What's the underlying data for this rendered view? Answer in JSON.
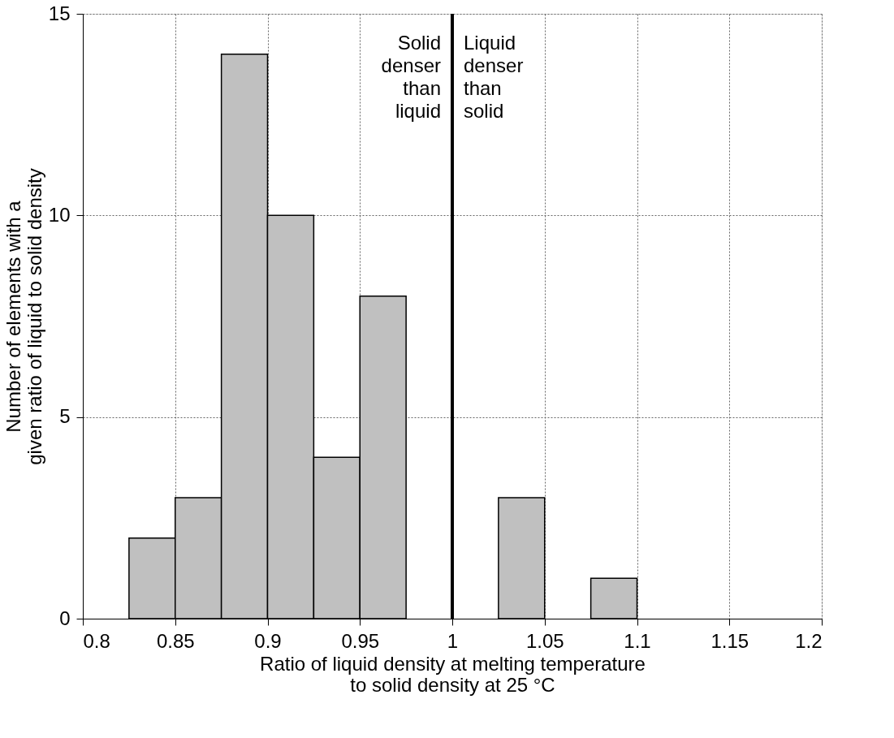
{
  "chart_data": {
    "type": "histogram",
    "xlabel": "Ratio of liquid density at melting temperature\nto solid density at 25 °C",
    "ylabel": "Number of elements with a\ngiven ratio of liquid to solid density",
    "bins": [
      0.825,
      0.85,
      0.875,
      0.9,
      0.925,
      0.95,
      0.975,
      1.0,
      1.025,
      1.05,
      1.075,
      1.1
    ],
    "values": [
      2,
      3,
      14,
      10,
      4,
      8,
      0,
      0,
      3,
      0,
      1
    ],
    "color": "#c0c0c0",
    "xlim": [
      0.8,
      1.2
    ],
    "xticks": [
      0.8,
      0.85,
      0.9,
      0.95,
      1,
      1.05,
      1.1,
      1.15,
      1.2
    ],
    "ylim": [
      0,
      15
    ],
    "yticks": [
      0,
      5,
      10,
      15
    ],
    "grid": true,
    "ref_lines": [
      {
        "axis": "x",
        "value": 1,
        "color": "#000000"
      }
    ],
    "annotations": [
      {
        "text": "Solid\ndenser\nthan\nliquid",
        "x": 1,
        "y": 14.5
      },
      {
        "text": "Liquid\ndenser\nthan\nsolid",
        "x": 1,
        "y": 14.5
      }
    ]
  }
}
